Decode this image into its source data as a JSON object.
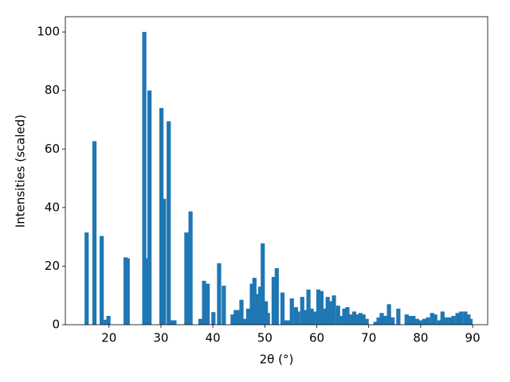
{
  "chart_data": {
    "type": "bar",
    "xlabel": "2θ (°)",
    "ylabel": "Intensities (scaled)",
    "color": "#1f77b4",
    "bar_width": 0.8,
    "x": [
      15.7,
      17.2,
      18.6,
      19.1,
      19.9,
      23.2,
      23.6,
      26.8,
      27.4,
      27.8,
      30.1,
      30.6,
      31.5,
      32.1,
      32.6,
      34.9,
      35.7,
      37.6,
      38.3,
      39.0,
      40.1,
      41.2,
      42.1,
      43.8,
      44.4,
      44.9,
      45.5,
      46.1,
      46.8,
      47.5,
      48.0,
      48.6,
      49.1,
      49.6,
      50.2,
      50.6,
      51.7,
      52.3,
      53.4,
      54.0,
      54.6,
      55.2,
      56.0,
      56.4,
      57.2,
      57.8,
      58.4,
      59.0,
      59.7,
      60.3,
      60.9,
      61.5,
      62.1,
      62.7,
      63.3,
      64.1,
      64.7,
      65.3,
      65.9,
      66.5,
      67.2,
      67.8,
      68.4,
      69.0,
      69.6,
      71.3,
      71.9,
      72.5,
      73.1,
      73.9,
      74.6,
      75.7,
      77.3,
      77.9,
      78.6,
      79.3,
      80.0,
      80.7,
      81.4,
      82.2,
      82.8,
      83.6,
      84.2,
      84.9,
      85.7,
      86.3,
      87.1,
      87.8,
      88.6,
      89.2,
      89.6
    ],
    "values": [
      31.5,
      62.7,
      30.3,
      1.7,
      3,
      23,
      22.7,
      100,
      22.7,
      80,
      74,
      43,
      69.5,
      1.5,
      1.5,
      31.5,
      38.7,
      2,
      15,
      14,
      4.3,
      21,
      13.3,
      3.5,
      5,
      5,
      8.5,
      2,
      5.5,
      14,
      16,
      10.5,
      13,
      27.8,
      8,
      4,
      16.3,
      19.3,
      11,
      1.5,
      1.5,
      9,
      6,
      4.5,
      9.5,
      5,
      12,
      5.5,
      4.5,
      12,
      11.5,
      5.5,
      9.5,
      8,
      10,
      6.5,
      3,
      5.5,
      6,
      3.5,
      4.5,
      3.5,
      4,
      3.5,
      2,
      1,
      2.5,
      4,
      3,
      7,
      2.5,
      5.5,
      3.5,
      3,
      3,
      2,
      1.5,
      2,
      2.5,
      4,
      3.5,
      1.5,
      4.5,
      2.5,
      2.5,
      3,
      4,
      4.5,
      4.5,
      3.5,
      2
    ],
    "xlim": [
      11.6,
      92.9
    ],
    "ylim": [
      0,
      105.2
    ],
    "xticks": [
      20,
      30,
      40,
      50,
      60,
      70,
      80,
      90
    ],
    "yticks": [
      0,
      20,
      40,
      60,
      80,
      100
    ]
  }
}
